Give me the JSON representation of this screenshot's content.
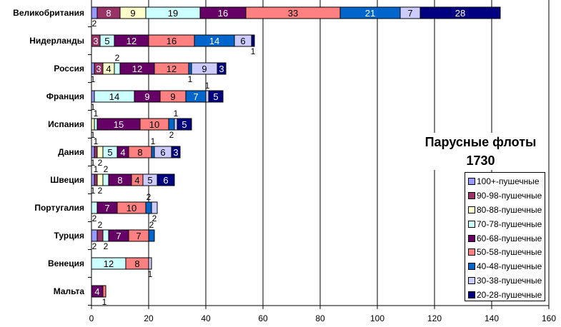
{
  "chart_data": {
    "type": "bar",
    "orientation": "horizontal",
    "stacked": true,
    "title": "Парусные флоты 1730",
    "xlabel": "",
    "ylabel": "",
    "xlim": [
      0,
      160
    ],
    "xticks": [
      0,
      20,
      40,
      60,
      80,
      100,
      120,
      140,
      160
    ],
    "grid": true,
    "legend_position": "right",
    "categories": [
      "Великобритания",
      "Нидерланды",
      "Россия",
      "Франция",
      "Испания",
      "Дания",
      "Швеция",
      "Португалия",
      "Турция",
      "Венеция",
      "Мальта"
    ],
    "series": [
      {
        "name": "100+-пушечные",
        "color": "#9999ff",
        "label_color": "#ffffff",
        "values": [
          2,
          0,
          1,
          1,
          0,
          1,
          1,
          0,
          2,
          0,
          0
        ]
      },
      {
        "name": "90-98-пушечные",
        "color": "#993366",
        "label_color": "#ffffff",
        "values": [
          8,
          3,
          3,
          0,
          0,
          1,
          1,
          0,
          2,
          0,
          0
        ]
      },
      {
        "name": "80-88-пушечные",
        "color": "#ffffcc",
        "label_color": "#000000",
        "values": [
          9,
          0,
          4,
          0,
          1,
          2,
          2,
          0,
          0,
          0,
          0
        ]
      },
      {
        "name": "70-78-пушечные",
        "color": "#ccffff",
        "label_color": "#000000",
        "values": [
          19,
          5,
          2,
          14,
          1,
          5,
          2,
          2,
          2,
          12,
          0
        ]
      },
      {
        "name": "60-68-пушечные",
        "color": "#660066",
        "label_color": "#ffffff",
        "values": [
          16,
          12,
          12,
          9,
          15,
          4,
          8,
          7,
          7,
          0,
          4
        ]
      },
      {
        "name": "50-58-пушечные",
        "color": "#ff8080",
        "label_color": "#000000",
        "values": [
          33,
          16,
          12,
          9,
          10,
          8,
          4,
          10,
          7,
          8,
          1
        ]
      },
      {
        "name": "40-48-пушечные",
        "color": "#0066cc",
        "label_color": "#ffffff",
        "values": [
          21,
          14,
          1,
          7,
          2,
          1,
          0,
          2,
          2,
          0,
          0
        ]
      },
      {
        "name": "30-38-пушечные",
        "color": "#ccccff",
        "label_color": "#000000",
        "values": [
          7,
          6,
          9,
          1,
          1,
          6,
          5,
          2,
          0,
          1,
          0
        ]
      },
      {
        "name": "20-28-пушечные",
        "color": "#000080",
        "label_color": "#ffffff",
        "values": [
          28,
          1,
          3,
          5,
          5,
          3,
          6,
          0,
          0,
          0,
          0
        ]
      }
    ]
  }
}
